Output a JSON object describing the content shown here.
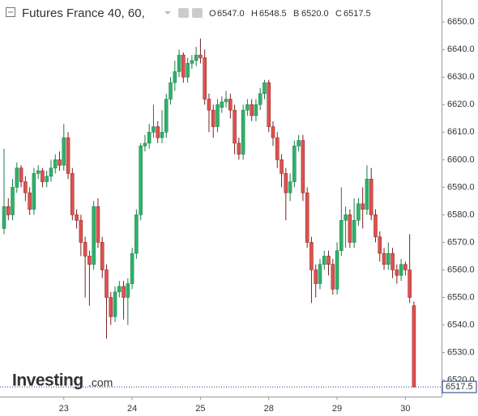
{
  "header": {
    "title": "Futures France 40, 60,",
    "ohlc": [
      {
        "key": "O",
        "value": "6547.0"
      },
      {
        "key": "H",
        "value": "6548.5"
      },
      {
        "key": "B",
        "value": "6520.0"
      },
      {
        "key": "C",
        "value": "6517.5"
      }
    ]
  },
  "logo": {
    "brand": "Investing",
    "suffix": ".com"
  },
  "chart_data": {
    "type": "candlestick",
    "categories": [
      null,
      null,
      null,
      null,
      null,
      null,
      null,
      null,
      null,
      null,
      null,
      null,
      null,
      null,
      "23",
      null,
      null,
      null,
      null,
      null,
      null,
      null,
      null,
      null,
      null,
      null,
      null,
      null,
      null,
      null,
      "24",
      null,
      null,
      null,
      null,
      null,
      null,
      null,
      null,
      null,
      null,
      null,
      null,
      null,
      null,
      null,
      "25",
      null,
      null,
      null,
      null,
      null,
      null,
      null,
      null,
      null,
      null,
      null,
      null,
      null,
      null,
      null,
      "28",
      null,
      null,
      null,
      null,
      null,
      null,
      null,
      null,
      null,
      null,
      null,
      null,
      null,
      null,
      null,
      "29",
      null,
      null,
      null,
      null,
      null,
      null,
      null,
      null,
      null,
      null,
      null,
      null,
      null,
      null,
      null,
      "30",
      null,
      null
    ],
    "open": [
      6575,
      6583,
      6580,
      6590,
      6597,
      6592,
      6588,
      6582,
      6595,
      6596,
      6592,
      6594,
      6597,
      6600,
      6598,
      6608,
      6595,
      6580,
      6578,
      6570,
      6565,
      6562,
      6583,
      6570,
      6560,
      6550,
      6543,
      6552,
      6554,
      6550,
      6555,
      6566,
      6580,
      6605,
      6606,
      6610,
      6612,
      6608,
      6610,
      6622,
      6628,
      6632,
      6638,
      6630,
      6635,
      6636,
      6638,
      6637,
      6622,
      6618,
      6612,
      6619,
      6621,
      6622,
      6618,
      6606,
      6602,
      6618,
      6620,
      6616,
      6620,
      6624,
      6628,
      6612,
      6608,
      6600,
      6595,
      6588,
      6592,
      6605,
      6607,
      6588,
      6570,
      6560,
      6555,
      6562,
      6565,
      6562,
      6553,
      6567,
      6578,
      6580,
      6570,
      6578,
      6584,
      6582,
      6593,
      6580,
      6572,
      6566,
      6562,
      6566,
      6560,
      6558,
      6562,
      6560,
      6547
    ],
    "high": [
      6604,
      6586,
      6593,
      6599,
      6598,
      6594,
      6590,
      6597,
      6598,
      6597,
      6596,
      6600,
      6602,
      6603,
      6613,
      6610,
      6597,
      6582,
      6580,
      6572,
      6567,
      6585,
      6586,
      6572,
      6562,
      6552,
      6554,
      6556,
      6556,
      6557,
      6568,
      6582,
      6606,
      6609,
      6613,
      6620,
      6614,
      6618,
      6624,
      6630,
      6636,
      6640,
      6639,
      6637,
      6638,
      6641,
      6644,
      6640,
      6624,
      6620,
      6622,
      6623,
      6625,
      6624,
      6620,
      6608,
      6620,
      6622,
      6622,
      6622,
      6626,
      6629,
      6629,
      6614,
      6610,
      6602,
      6597,
      6595,
      6607,
      6609,
      6609,
      6590,
      6572,
      6562,
      6564,
      6567,
      6567,
      6564,
      6570,
      6590,
      6583,
      6582,
      6586,
      6586,
      6590,
      6598,
      6597,
      6582,
      6574,
      6568,
      6570,
      6568,
      6562,
      6564,
      6563,
      6573,
      6548.5
    ],
    "low": [
      6573,
      6578,
      6578,
      6588,
      6590,
      6585,
      6580,
      6580,
      6593,
      6590,
      6590,
      6592,
      6595,
      6596,
      6596,
      6593,
      6578,
      6575,
      6565,
      6550,
      6547,
      6560,
      6568,
      6557,
      6535,
      6540,
      6541,
      6550,
      6542,
      6540,
      6553,
      6564,
      6578,
      6603,
      6604,
      6608,
      6606,
      6606,
      6608,
      6620,
      6625,
      6630,
      6628,
      6628,
      6633,
      6634,
      6635,
      6620,
      6610,
      6608,
      6610,
      6617,
      6619,
      6615,
      6602,
      6600,
      6600,
      6616,
      6614,
      6614,
      6618,
      6622,
      6610,
      6605,
      6597,
      6590,
      6578,
      6585,
      6590,
      6603,
      6585,
      6568,
      6548,
      6550,
      6553,
      6560,
      6558,
      6551,
      6551,
      6565,
      6568,
      6568,
      6568,
      6576,
      6575,
      6580,
      6578,
      6570,
      6563,
      6560,
      6560,
      6557,
      6555,
      6556,
      6558,
      6548,
      6517.5
    ],
    "close": [
      6583,
      6580,
      6590,
      6597,
      6592,
      6588,
      6582,
      6595,
      6596,
      6592,
      6594,
      6597,
      6600,
      6598,
      6608,
      6595,
      6580,
      6578,
      6570,
      6565,
      6562,
      6583,
      6570,
      6560,
      6550,
      6543,
      6552,
      6554,
      6550,
      6555,
      6566,
      6580,
      6605,
      6606,
      6610,
      6612,
      6608,
      6610,
      6622,
      6628,
      6632,
      6638,
      6630,
      6635,
      6636,
      6638,
      6637,
      6622,
      6618,
      6612,
      6620,
      6621,
      6622,
      6618,
      6606,
      6602,
      6618,
      6620,
      6616,
      6620,
      6624,
      6628,
      6612,
      6608,
      6600,
      6595,
      6588,
      6592,
      6605,
      6607,
      6588,
      6570,
      6560,
      6555,
      6562,
      6565,
      6562,
      6553,
      6567,
      6578,
      6580,
      6570,
      6578,
      6584,
      6582,
      6593,
      6580,
      6572,
      6566,
      6562,
      6566,
      6560,
      6558,
      6562,
      6560,
      6550,
      6517.5
    ],
    "up_color": "#2cb36a",
    "down_color": "#e2514d",
    "ylim": [
      6514,
      6658
    ],
    "yticks": [
      {
        "value": 6520,
        "label": "6520.0"
      },
      {
        "value": 6530,
        "label": "6530.0"
      },
      {
        "value": 6540,
        "label": "6540.0"
      },
      {
        "value": 6550,
        "label": "6550.0"
      },
      {
        "value": 6560,
        "label": "6560.0"
      },
      {
        "value": 6570,
        "label": "6570.0"
      },
      {
        "value": 6580,
        "label": "6580.0"
      },
      {
        "value": 6590,
        "label": "6590.0"
      },
      {
        "value": 6600,
        "label": "6600.0"
      },
      {
        "value": 6610,
        "label": "6610.0"
      },
      {
        "value": 6620,
        "label": "6620.0"
      },
      {
        "value": 6630,
        "label": "6630.0"
      },
      {
        "value": 6640,
        "label": "6640.0"
      },
      {
        "value": 6650,
        "label": "6650.0"
      }
    ],
    "last_price": 6517.5
  }
}
